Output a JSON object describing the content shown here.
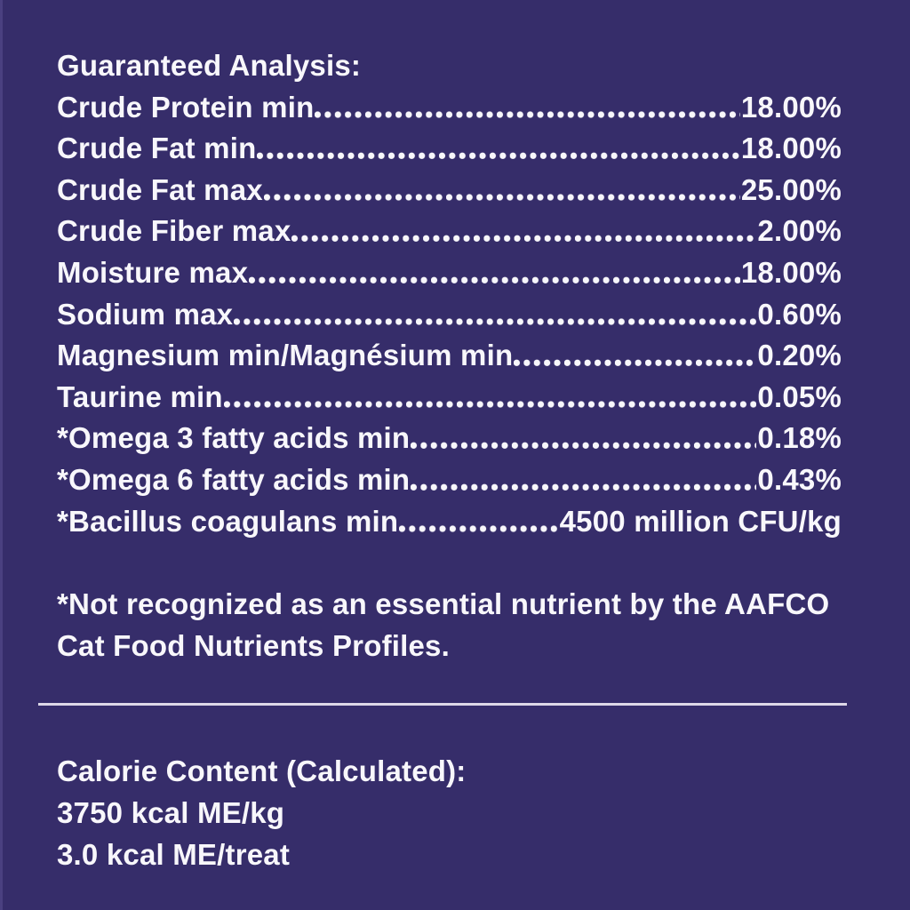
{
  "panel": {
    "background_color": "#362d6a",
    "text_color": "#f8f7fb"
  },
  "guaranteed_analysis": {
    "heading": "Guaranteed Analysis:",
    "rows": [
      {
        "label": "Crude Protein min",
        "value": "18.00%"
      },
      {
        "label": "Crude Fat min",
        "value": "18.00%"
      },
      {
        "label": "Crude Fat max",
        "value": "25.00%"
      },
      {
        "label": "Crude Fiber max",
        "value": "2.00%"
      },
      {
        "label": "Moisture max",
        "value": "18.00%"
      },
      {
        "label": "Sodium max",
        "value": "0.60%"
      },
      {
        "label": "Magnesium min/Magnésium min",
        "value": "0.20%"
      },
      {
        "label": "Taurine min",
        "value": "0.05%"
      },
      {
        "label": "*Omega 3 fatty acids min",
        "value": "0.18%"
      },
      {
        "label": "*Omega 6 fatty acids min",
        "value": "0.43%"
      },
      {
        "label": "*Bacillus coagulans min",
        "value": "4500 million CFU/kg"
      }
    ]
  },
  "footnote": {
    "line1": "*Not recognized as an essential nutrient by the AAFCO",
    "line2": "Cat Food Nutrients Profiles."
  },
  "calorie_content": {
    "heading": "Calorie Content (Calculated):",
    "lines": [
      "3750 kcal ME/kg",
      "3.0 kcal ME/treat"
    ]
  }
}
